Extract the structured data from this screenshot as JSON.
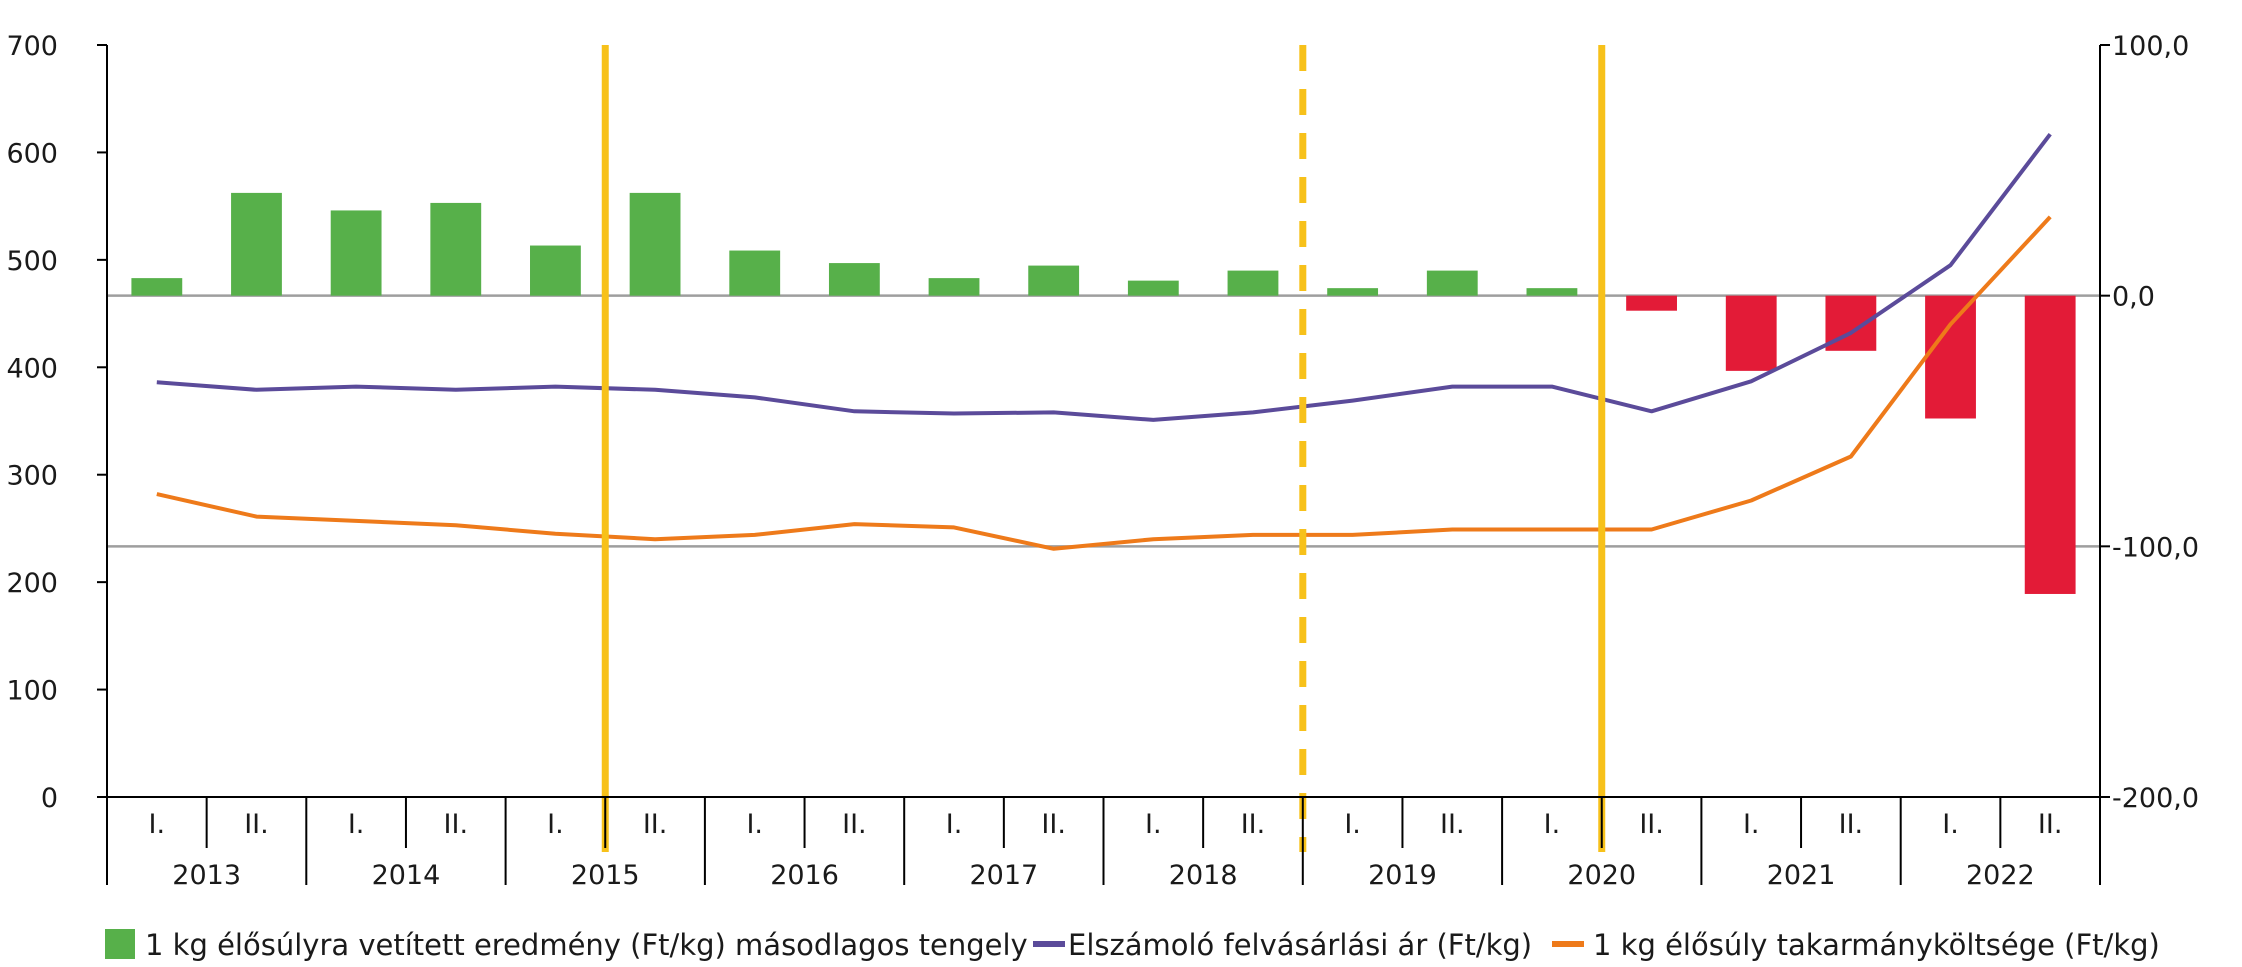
{
  "chart_data": {
    "type": "bar+line",
    "categories": [
      {
        "half": "I.",
        "year": "2013"
      },
      {
        "half": "II.",
        "year": "2013"
      },
      {
        "half": "I.",
        "year": "2014"
      },
      {
        "half": "II.",
        "year": "2014"
      },
      {
        "half": "I.",
        "year": "2015"
      },
      {
        "half": "II.",
        "year": "2015"
      },
      {
        "half": "I.",
        "year": "2016"
      },
      {
        "half": "II.",
        "year": "2016"
      },
      {
        "half": "I.",
        "year": "2017"
      },
      {
        "half": "II.",
        "year": "2017"
      },
      {
        "half": "I.",
        "year": "2018"
      },
      {
        "half": "II.",
        "year": "2018"
      },
      {
        "half": "I.",
        "year": "2019"
      },
      {
        "half": "II.",
        "year": "2019"
      },
      {
        "half": "I.",
        "year": "2020"
      },
      {
        "half": "II.",
        "year": "2020"
      },
      {
        "half": "I.",
        "year": "2021"
      },
      {
        "half": "II.",
        "year": "2021"
      },
      {
        "half": "I.",
        "year": "2022"
      },
      {
        "half": "II.",
        "year": "2022"
      }
    ],
    "years": [
      "2013",
      "2014",
      "2015",
      "2016",
      "2017",
      "2018",
      "2019",
      "2020",
      "2021",
      "2022"
    ],
    "left_axis": {
      "min": 0,
      "max": 700,
      "ticks": [
        "0",
        "100",
        "200",
        "300",
        "400",
        "500",
        "600",
        "700"
      ]
    },
    "right_axis": {
      "min": -200,
      "max": 100,
      "ticks": [
        "-200,0",
        "-100,0",
        "0,0",
        "100,0"
      ]
    },
    "series": [
      {
        "name": "1 kg élősúlyra vetített eredmény (Ft/kg) másodlagos tengely",
        "type": "bar",
        "axis": "right",
        "values": [
          7,
          41,
          34,
          37,
          20,
          41,
          18,
          13,
          7,
          12,
          6,
          10,
          3,
          10,
          3,
          -6,
          -30,
          -22,
          -49,
          -119
        ]
      },
      {
        "name": "Elszámoló felvásárlási ár (Ft/kg)",
        "type": "line",
        "axis": "left",
        "values": [
          386,
          379,
          382,
          379,
          382,
          379,
          372,
          359,
          357,
          358,
          351,
          358,
          369,
          382,
          382,
          359,
          387,
          432,
          495,
          617
        ]
      },
      {
        "name": "1 kg élősúly takarmányköltsége (Ft/kg)",
        "type": "line",
        "axis": "left",
        "values": [
          282,
          261,
          257,
          253,
          245,
          240,
          244,
          254,
          251,
          231,
          240,
          244,
          244,
          249,
          249,
          249,
          276,
          317,
          440,
          540
        ]
      }
    ],
    "vertical_markers": [
      {
        "after_index": 4.5,
        "style": "solid"
      },
      {
        "after_index": 11.5,
        "style": "dashed"
      },
      {
        "after_index": 14.5,
        "style": "solid"
      }
    ],
    "colors": {
      "positive_bar": "#57b04a",
      "negative_bar": "#e31b37",
      "price_line": "#5b4b9a",
      "feed_line": "#ee7a1a",
      "marker": "#f7c11a",
      "axis": "#000000",
      "ref_line": "#9e9e9e"
    }
  },
  "legend": [
    {
      "label": "1 kg élősúlyra vetített eredmény (Ft/kg) másodlagos tengely",
      "swatch": "square",
      "color": "#57b04a"
    },
    {
      "label": "Elszámoló felvásárlási ár (Ft/kg)",
      "swatch": "line",
      "color": "#5b4b9a"
    },
    {
      "label": "1 kg élősúly takarmányköltsége (Ft/kg)",
      "swatch": "line",
      "color": "#ee7a1a"
    }
  ]
}
